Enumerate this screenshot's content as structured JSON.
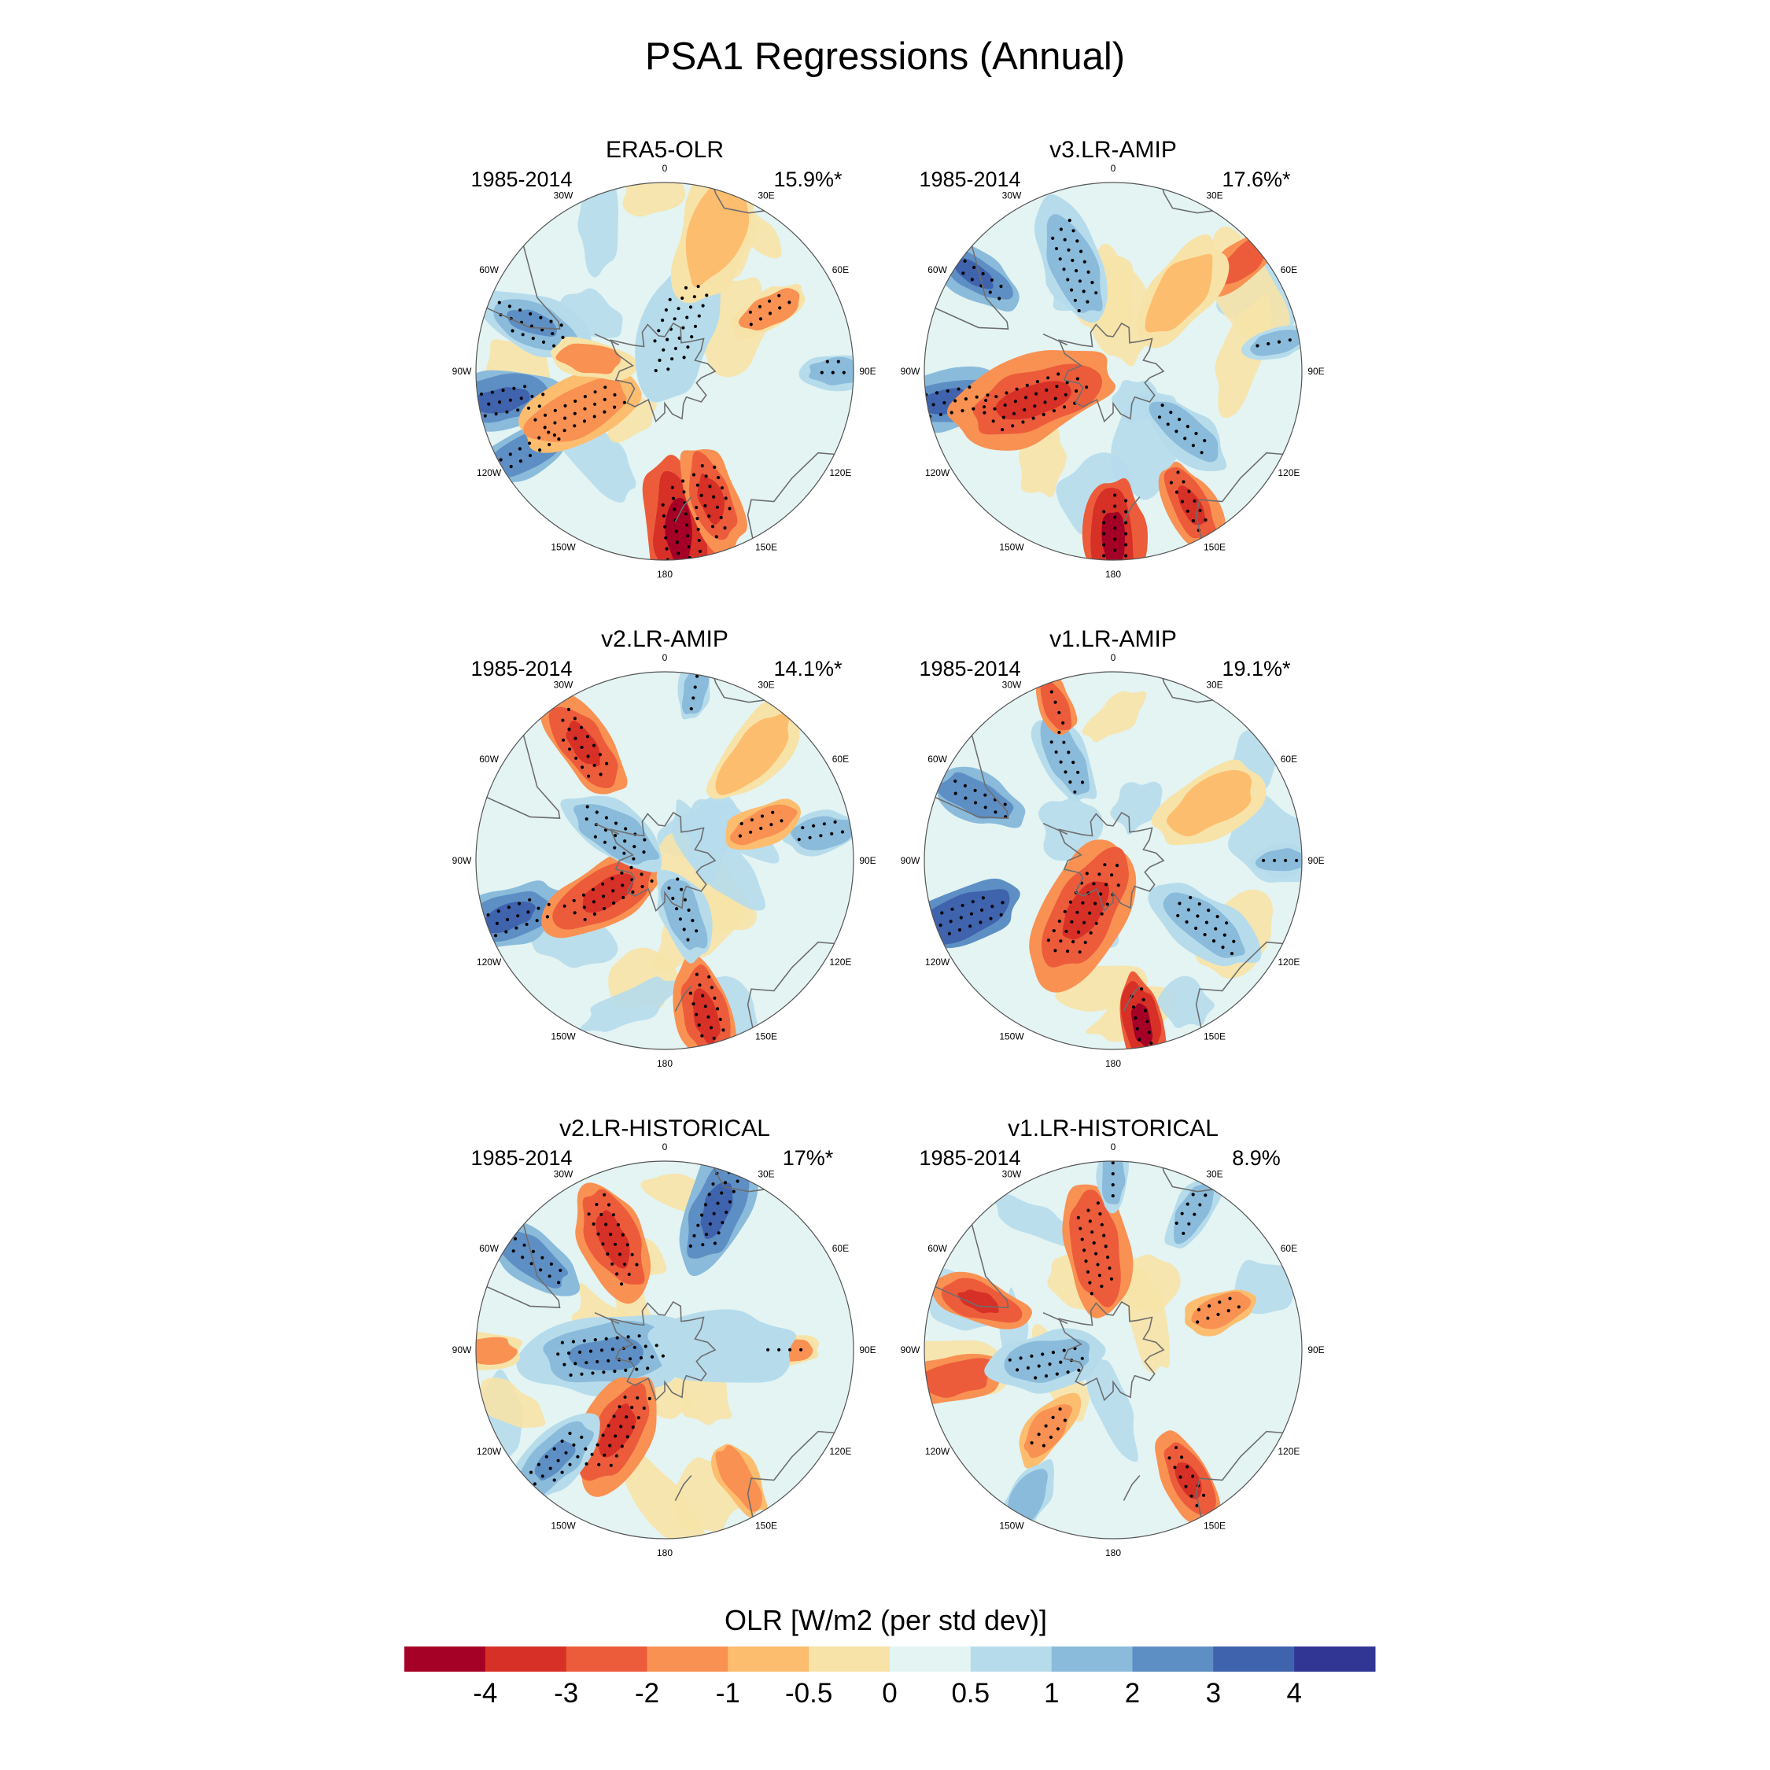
{
  "figure": {
    "title": "PSA1 Regressions (Annual)"
  },
  "panels": [
    {
      "id": "era5",
      "title": "ERA5-OLR",
      "period": "1985-2014",
      "variance": "15.9%*",
      "blobs": [
        {
          "lon": -100,
          "r": 0.88,
          "s": 0.15,
          "v": 2.6,
          "dots": true
        },
        {
          "lon": -70,
          "r": 0.75,
          "s": 0.14,
          "v": 2.0,
          "dots": true
        },
        {
          "lon": -120,
          "r": 0.85,
          "s": 0.12,
          "v": 2.2,
          "dots": true
        },
        {
          "lon": 175,
          "r": 0.85,
          "s": 0.18,
          "v": -3.6,
          "dots": true
        },
        {
          "lon": 160,
          "r": 0.72,
          "s": 0.14,
          "v": -2.6,
          "dots": true
        },
        {
          "lon": -115,
          "r": 0.5,
          "s": 0.16,
          "v": -1.6,
          "dots": true
        },
        {
          "lon": -80,
          "r": 0.4,
          "s": 0.1,
          "v": -1.2,
          "dots": false
        },
        {
          "lon": 20,
          "r": 0.25,
          "s": 0.18,
          "v": 0.8,
          "dots": true
        },
        {
          "lon": 60,
          "r": 0.65,
          "s": 0.1,
          "v": -1.0,
          "dots": true
        },
        {
          "lon": 90,
          "r": 0.92,
          "s": 0.09,
          "v": 1.2,
          "dots": true
        },
        {
          "lon": 20,
          "r": 0.8,
          "s": 0.18,
          "v": -0.6,
          "dots": false
        }
      ]
    },
    {
      "id": "v3amip",
      "title": "v3.LR-AMIP",
      "period": "1985-2014",
      "variance": "17.6%*",
      "blobs": [
        {
          "lon": -100,
          "r": 0.9,
          "s": 0.15,
          "v": 3.0,
          "dots": true
        },
        {
          "lon": -55,
          "r": 0.9,
          "s": 0.12,
          "v": 3.0,
          "dots": true
        },
        {
          "lon": -20,
          "r": 0.6,
          "s": 0.16,
          "v": 1.6,
          "dots": true
        },
        {
          "lon": -110,
          "r": 0.45,
          "s": 0.2,
          "v": -2.2,
          "dots": true
        },
        {
          "lon": 180,
          "r": 0.88,
          "s": 0.15,
          "v": -3.8,
          "dots": true
        },
        {
          "lon": 150,
          "r": 0.82,
          "s": 0.12,
          "v": -2.8,
          "dots": true
        },
        {
          "lon": 130,
          "r": 0.5,
          "s": 0.12,
          "v": 1.2,
          "dots": true
        },
        {
          "lon": 50,
          "r": 0.9,
          "s": 0.1,
          "v": -2.0,
          "dots": false
        },
        {
          "lon": 80,
          "r": 0.88,
          "s": 0.08,
          "v": 1.4,
          "dots": true
        },
        {
          "lon": 40,
          "r": 0.55,
          "s": 0.15,
          "v": -0.8,
          "dots": false
        }
      ]
    },
    {
      "id": "v2amip",
      "title": "v2.LR-AMIP",
      "period": "1985-2014",
      "variance": "14.1%*",
      "blobs": [
        {
          "lon": -110,
          "r": 0.88,
          "s": 0.15,
          "v": 2.8,
          "dots": true
        },
        {
          "lon": -35,
          "r": 0.75,
          "s": 0.14,
          "v": -2.6,
          "dots": true
        },
        {
          "lon": -120,
          "r": 0.35,
          "s": 0.16,
          "v": -2.6,
          "dots": true
        },
        {
          "lon": 165,
          "r": 0.85,
          "s": 0.15,
          "v": -2.8,
          "dots": true
        },
        {
          "lon": -60,
          "r": 0.3,
          "s": 0.14,
          "v": 1.4,
          "dots": true
        },
        {
          "lon": 160,
          "r": 0.3,
          "s": 0.12,
          "v": 1.2,
          "dots": true
        },
        {
          "lon": 80,
          "r": 0.85,
          "s": 0.1,
          "v": 1.4,
          "dots": true
        },
        {
          "lon": 70,
          "r": 0.55,
          "s": 0.1,
          "v": -1.6,
          "dots": true
        },
        {
          "lon": 10,
          "r": 0.92,
          "s": 0.08,
          "v": 1.2,
          "dots": true
        },
        {
          "lon": 40,
          "r": 0.75,
          "s": 0.15,
          "v": -0.9,
          "dots": false
        }
      ]
    },
    {
      "id": "v1amip",
      "title": "v1.LR-AMIP",
      "period": "1985-2014",
      "variance": "19.1%*",
      "blobs": [
        {
          "lon": -110,
          "r": 0.85,
          "s": 0.15,
          "v": 3.2,
          "dots": true
        },
        {
          "lon": -65,
          "r": 0.8,
          "s": 0.12,
          "v": 2.2,
          "dots": true
        },
        {
          "lon": -150,
          "r": 0.3,
          "s": 0.2,
          "v": -2.8,
          "dots": true
        },
        {
          "lon": 170,
          "r": 0.88,
          "s": 0.12,
          "v": -3.4,
          "dots": true
        },
        {
          "lon": 125,
          "r": 0.6,
          "s": 0.14,
          "v": 1.8,
          "dots": true
        },
        {
          "lon": -25,
          "r": 0.6,
          "s": 0.12,
          "v": 1.4,
          "dots": true
        },
        {
          "lon": -20,
          "r": 0.88,
          "s": 0.08,
          "v": -2.0,
          "dots": true
        },
        {
          "lon": 90,
          "r": 0.9,
          "s": 0.08,
          "v": 1.5,
          "dots": true
        },
        {
          "lon": 60,
          "r": 0.6,
          "s": 0.15,
          "v": -0.8,
          "dots": false
        }
      ]
    },
    {
      "id": "v2hist",
      "title": "v2.LR-HISTORICAL",
      "period": "1985-2014",
      "variance": "17%*",
      "blobs": [
        {
          "lon": 20,
          "r": 0.8,
          "s": 0.16,
          "v": 2.4,
          "dots": true
        },
        {
          "lon": -55,
          "r": 0.85,
          "s": 0.12,
          "v": 2.2,
          "dots": true
        },
        {
          "lon": -25,
          "r": 0.65,
          "s": 0.16,
          "v": -2.2,
          "dots": true
        },
        {
          "lon": -95,
          "r": 0.3,
          "s": 0.2,
          "v": 2.0,
          "dots": true
        },
        {
          "lon": -150,
          "r": 0.5,
          "s": 0.16,
          "v": -2.4,
          "dots": true
        },
        {
          "lon": -135,
          "r": 0.82,
          "s": 0.14,
          "v": 2.0,
          "dots": true
        },
        {
          "lon": 90,
          "r": 0.65,
          "s": 0.08,
          "v": -1.4,
          "dots": true
        },
        {
          "lon": 150,
          "r": 0.78,
          "s": 0.1,
          "v": -1.6,
          "dots": false
        },
        {
          "lon": -90,
          "r": 0.95,
          "s": 0.09,
          "v": -1.4,
          "dots": false
        },
        {
          "lon": 90,
          "r": 0.3,
          "s": 0.18,
          "v": 0.6,
          "dots": false
        }
      ]
    },
    {
      "id": "v1hist",
      "title": "v1.LR-HISTORICAL",
      "period": "1985-2014",
      "variance": "8.9%",
      "blobs": [
        {
          "lon": -10,
          "r": 0.55,
          "s": 0.16,
          "v": -2.0,
          "dots": true
        },
        {
          "lon": -70,
          "r": 0.75,
          "s": 0.12,
          "v": -2.4,
          "dots": false
        },
        {
          "lon": -100,
          "r": 0.85,
          "s": 0.12,
          "v": -2.0,
          "dots": false
        },
        {
          "lon": -100,
          "r": 0.35,
          "s": 0.14,
          "v": 1.6,
          "dots": true
        },
        {
          "lon": 0,
          "r": 0.92,
          "s": 0.08,
          "v": 1.8,
          "dots": true
        },
        {
          "lon": 30,
          "r": 0.85,
          "s": 0.1,
          "v": 1.4,
          "dots": true
        },
        {
          "lon": 70,
          "r": 0.6,
          "s": 0.1,
          "v": -1.8,
          "dots": true
        },
        {
          "lon": 150,
          "r": 0.8,
          "s": 0.12,
          "v": -2.2,
          "dots": true
        },
        {
          "lon": -140,
          "r": 0.55,
          "s": 0.1,
          "v": -1.8,
          "dots": true
        },
        {
          "lon": -150,
          "r": 0.9,
          "s": 0.1,
          "v": 1.4,
          "dots": false
        }
      ]
    }
  ],
  "longitude_labels": [
    {
      "lon": 0,
      "text": "0"
    },
    {
      "lon": 30,
      "text": "30E"
    },
    {
      "lon": 60,
      "text": "60E"
    },
    {
      "lon": 90,
      "text": "90E"
    },
    {
      "lon": 120,
      "text": "120E"
    },
    {
      "lon": 150,
      "text": "150E"
    },
    {
      "lon": 180,
      "text": "180"
    },
    {
      "lon": -150,
      "text": "150W"
    },
    {
      "lon": -120,
      "text": "120W"
    },
    {
      "lon": -90,
      "text": "90W"
    },
    {
      "lon": -60,
      "text": "60W"
    },
    {
      "lon": -30,
      "text": "30W"
    }
  ],
  "colorbar": {
    "title": "OLR [W/m2 (per std dev)]",
    "levels": [
      -4,
      -3,
      -2,
      -1,
      -0.5,
      0,
      0.5,
      1,
      2,
      3,
      4
    ],
    "tick_labels": [
      "-4",
      "-3",
      "-2",
      "-1",
      "-0.5",
      "0",
      "0.5",
      "1",
      "2",
      "3",
      "4"
    ],
    "colors": [
      "#a50026",
      "#d73027",
      "#ec5c3b",
      "#f99153",
      "#fdbd6f",
      "#f7e3a7",
      "#e3f4f3",
      "#b6dcec",
      "#8abbdb",
      "#5e8fc4",
      "#3f63ad",
      "#313695"
    ]
  },
  "stipple_color": "#000000",
  "coast_color": "#6e6e6e"
}
